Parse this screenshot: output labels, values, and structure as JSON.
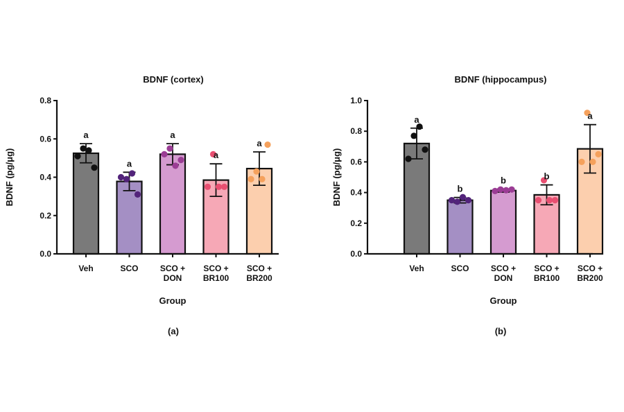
{
  "chart_data": [
    {
      "type": "bar",
      "title": "BDNF (cortex)",
      "xlabel": "Group",
      "ylabel": "BDNF (pg/μg)",
      "ylim": [
        0,
        0.8
      ],
      "yticks": [
        "0.0",
        "0.2",
        "0.4",
        "0.6",
        "0.8"
      ],
      "panel_label": "(a)",
      "categories": [
        [
          "Veh"
        ],
        [
          "SCO"
        ],
        [
          "SCO +",
          "DON"
        ],
        [
          "SCO +",
          "BR100"
        ],
        [
          "SCO +",
          "BR200"
        ]
      ],
      "values": [
        0.525,
        0.378,
        0.52,
        0.385,
        0.445
      ],
      "errors": [
        0.05,
        0.048,
        0.055,
        0.085,
        0.087
      ],
      "significance": [
        "a",
        "a",
        "a",
        "a",
        "a"
      ],
      "points": [
        [
          0.51,
          0.55,
          0.54,
          0.45
        ],
        [
          0.4,
          0.39,
          0.42,
          0.31
        ],
        [
          0.52,
          0.55,
          0.46,
          0.49
        ],
        [
          0.35,
          0.52,
          0.35,
          0.35
        ],
        [
          0.39,
          0.43,
          0.39,
          0.57
        ]
      ],
      "bar_colors": [
        "#7a7a7a",
        "#a48fc4",
        "#d59bd0",
        "#f6a8b6",
        "#fccfae"
      ],
      "point_colors": [
        "#111111",
        "#52237a",
        "#9b3d95",
        "#e84f71",
        "#f5a15c"
      ]
    },
    {
      "type": "bar",
      "title": "BDNF (hippocampus)",
      "xlabel": "Group",
      "ylabel": "BDNF (pg/μg)",
      "ylim": [
        0,
        1.0
      ],
      "yticks": [
        "0.0",
        "0.2",
        "0.4",
        "0.6",
        "0.8",
        "1.0"
      ],
      "panel_label": "(b)",
      "categories": [
        [
          "Veh"
        ],
        [
          "SCO"
        ],
        [
          "SCO +",
          "DON"
        ],
        [
          "SCO +",
          "BR100"
        ],
        [
          "SCO +",
          "BR200"
        ]
      ],
      "values": [
        0.72,
        0.35,
        0.413,
        0.385,
        0.685
      ],
      "errors": [
        0.1,
        0.018,
        0.01,
        0.065,
        0.158
      ],
      "significance": [
        "a",
        "b",
        "b",
        "b",
        "a"
      ],
      "points": [
        [
          0.62,
          0.77,
          0.83,
          0.68
        ],
        [
          0.35,
          0.34,
          0.37,
          0.35
        ],
        [
          0.41,
          0.42,
          0.415,
          0.42
        ],
        [
          0.35,
          0.48,
          0.35,
          0.35
        ],
        [
          0.6,
          0.92,
          0.6,
          0.65
        ]
      ],
      "bar_colors": [
        "#7a7a7a",
        "#a48fc4",
        "#d59bd0",
        "#f6a8b6",
        "#fccfae"
      ],
      "point_colors": [
        "#111111",
        "#52237a",
        "#9b3d95",
        "#e84f71",
        "#f5a15c"
      ]
    }
  ]
}
